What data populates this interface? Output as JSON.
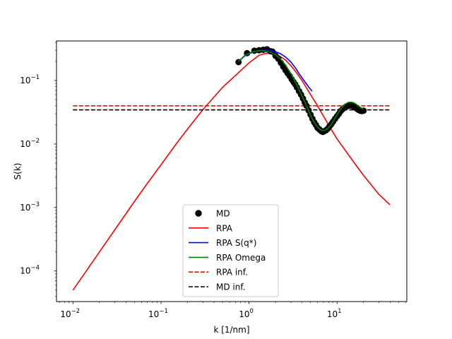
{
  "chart_data": {
    "type": "line",
    "xscale": "log",
    "yscale": "log",
    "xlim": [
      0.0065,
      62
    ],
    "ylim": [
      3.3e-05,
      0.42
    ],
    "xlabel": "k [1/nm]",
    "ylabel": "S(k)",
    "x_ticks": [
      {
        "value": 0.01,
        "base": "10",
        "exp": "−2"
      },
      {
        "value": 0.1,
        "base": "10",
        "exp": "−1"
      },
      {
        "value": 1,
        "base": "10",
        "exp": "0"
      },
      {
        "value": 10,
        "base": "10",
        "exp": "1"
      }
    ],
    "y_ticks": [
      {
        "value": 0.0001,
        "base": "10",
        "exp": "−4"
      },
      {
        "value": 0.001,
        "base": "10",
        "exp": "−3"
      },
      {
        "value": 0.01,
        "base": "10",
        "exp": "−2"
      },
      {
        "value": 0.1,
        "base": "10",
        "exp": "−1"
      }
    ],
    "grid": false,
    "legend_position": "lower center",
    "series": [
      {
        "name": "MD",
        "kind": "markers",
        "color": "#000000",
        "marker_fill": "#000000",
        "x": [
          0.76,
          0.95,
          1.15,
          1.3,
          1.45,
          1.6,
          1.75,
          1.85,
          2.0,
          2.15,
          2.3,
          2.45,
          2.6,
          2.75,
          2.9,
          3.05,
          3.2,
          3.35,
          3.5,
          3.7,
          3.9,
          4.1,
          4.3,
          4.5,
          4.75,
          5.0,
          5.25,
          5.5,
          5.75,
          6.0,
          6.3,
          6.6,
          6.9,
          7.2,
          7.5,
          7.85,
          8.2,
          8.6,
          9.0,
          9.5,
          10.0,
          10.5,
          11.0,
          11.6,
          12.2,
          12.8,
          13.4,
          14.0,
          14.7,
          15.4,
          16.1,
          16.8,
          17.5,
          18.3,
          19.1,
          20.0
        ],
        "y": [
          0.195,
          0.27,
          0.295,
          0.3,
          0.305,
          0.31,
          0.29,
          0.285,
          0.245,
          0.22,
          0.19,
          0.165,
          0.145,
          0.13,
          0.118,
          0.105,
          0.095,
          0.087,
          0.078,
          0.068,
          0.06,
          0.052,
          0.045,
          0.04,
          0.034,
          0.029,
          0.025,
          0.022,
          0.02,
          0.018,
          0.017,
          0.016,
          0.0155,
          0.016,
          0.0165,
          0.0175,
          0.019,
          0.0205,
          0.0225,
          0.025,
          0.0275,
          0.03,
          0.033,
          0.0355,
          0.0375,
          0.039,
          0.04,
          0.0405,
          0.04,
          0.039,
          0.0375,
          0.036,
          0.0345,
          0.0335,
          0.033,
          0.0335
        ]
      },
      {
        "name": "RPA",
        "kind": "line",
        "color": "#ff0000",
        "dash": false,
        "x": [
          0.01,
          0.02,
          0.03,
          0.05,
          0.07,
          0.1,
          0.15,
          0.2,
          0.3,
          0.4,
          0.5,
          0.7,
          1.0,
          1.3,
          1.5,
          1.8,
          2.2,
          2.6,
          3.0,
          3.5,
          4.0,
          5.0,
          6.0,
          8.0,
          10,
          15,
          20,
          30,
          40
        ],
        "y": [
          5e-05,
          0.0002,
          0.00045,
          0.00125,
          0.0024,
          0.0047,
          0.0102,
          0.0172,
          0.035,
          0.055,
          0.078,
          0.12,
          0.19,
          0.25,
          0.265,
          0.27,
          0.245,
          0.21,
          0.17,
          0.13,
          0.1,
          0.06,
          0.04,
          0.02,
          0.012,
          0.0055,
          0.0032,
          0.0016,
          0.0011
        ]
      },
      {
        "name": "RPA S(q*)",
        "kind": "line",
        "color": "#0000ff",
        "dash": false,
        "x": [
          0.76,
          0.9,
          1.1,
          1.3,
          1.5,
          1.7,
          2.0,
          2.3,
          2.6,
          3.0,
          3.4,
          3.8,
          4.3,
          4.8,
          5.2
        ],
        "y": [
          0.2,
          0.245,
          0.28,
          0.295,
          0.3,
          0.298,
          0.285,
          0.262,
          0.235,
          0.195,
          0.155,
          0.122,
          0.096,
          0.078,
          0.068
        ]
      },
      {
        "name": "RPA Omega",
        "kind": "line",
        "color": "#008000",
        "dash": false,
        "x": [
          0.76,
          0.9,
          1.1,
          1.3,
          1.5,
          1.75,
          2.0,
          2.3,
          2.6,
          3.0,
          3.4,
          3.8,
          4.3,
          4.8,
          5.3,
          5.8,
          6.3,
          6.8,
          7.3,
          7.8,
          8.5,
          9.3,
          10.2,
          11.2,
          12.3,
          13.5,
          14.8,
          16.0,
          17.2,
          18.5,
          19.5,
          20.0
        ],
        "y": [
          0.2,
          0.25,
          0.285,
          0.295,
          0.293,
          0.28,
          0.255,
          0.215,
          0.175,
          0.128,
          0.092,
          0.066,
          0.046,
          0.032,
          0.024,
          0.0195,
          0.0172,
          0.0163,
          0.0165,
          0.0175,
          0.02,
          0.0245,
          0.0305,
          0.037,
          0.0425,
          0.0455,
          0.0455,
          0.0435,
          0.0405,
          0.0375,
          0.036,
          0.0355
        ]
      },
      {
        "name": "RPA inf.",
        "kind": "line",
        "color": "#ff0000",
        "dash": true,
        "x": [
          0.01,
          40
        ],
        "y": [
          0.04,
          0.04
        ]
      },
      {
        "name": "MD inf.",
        "kind": "line",
        "color": "#000000",
        "dash": true,
        "x": [
          0.01,
          40
        ],
        "y": [
          0.0345,
          0.0345
        ]
      }
    ]
  }
}
